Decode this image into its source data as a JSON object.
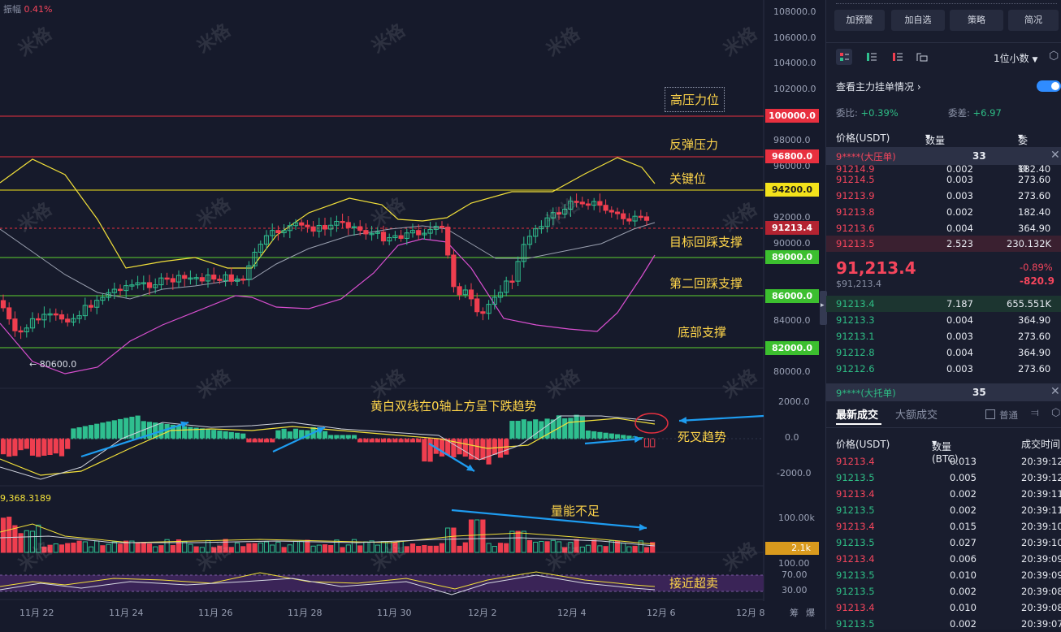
{
  "chart_header": {
    "amplitude_label": "振幅",
    "amplitude_value": "0.41%"
  },
  "price_axis": [
    "108000.0",
    "106000.0",
    "104000.0",
    "102000.0",
    "98000.0",
    "96000.0",
    "92000.0",
    "90000.0",
    "84000.0",
    "80000.0"
  ],
  "price_tags": [
    {
      "label": "100000.0",
      "kind": "red"
    },
    {
      "label": "96800.0",
      "kind": "red"
    },
    {
      "label": "94200.0",
      "kind": "yellow"
    },
    {
      "label": "91213.4",
      "kind": "darkred"
    },
    {
      "label": "89000.0",
      "kind": "green"
    },
    {
      "label": "86000.0",
      "kind": "green"
    },
    {
      "label": "82000.0",
      "kind": "green"
    }
  ],
  "annotations": {
    "high_pressure": "高压力位",
    "rebound_pressure": "反弹压力",
    "key_level": "关键位",
    "target_support": "目标回踩支撑",
    "second_support": "第二回踩支撑",
    "bottom_support": "底部支撑",
    "low_marker": "← 80600.0",
    "macd_note": "黄白双线在0轴上方呈下跌趋势",
    "death_cross": "死叉趋势",
    "volume_note": "量能不足",
    "near_oversold": "接近超卖"
  },
  "macd_axis": [
    "2000.0",
    "0.0",
    "-2000.0"
  ],
  "volume_header": "9,368.3189",
  "volume_axis": [
    "100.00k",
    "2.1k"
  ],
  "rsi_axis": [
    "100.00",
    "70.00",
    "30.00"
  ],
  "date_axis": [
    "11月 22",
    "11月 24",
    "11月 26",
    "11月 28",
    "11月 30",
    "12月 2",
    "12月 4",
    "12月 6",
    "12月 8"
  ],
  "axis_corner": [
    "筹",
    "爆"
  ],
  "watermark": "米格",
  "panel": {
    "buttons": [
      "加预警",
      "加自选",
      "策略",
      "简况"
    ],
    "precision": "1位小数",
    "main_orders_link": "查看主力挂单情况",
    "ratio_label": "委比:",
    "ratio_value": "+0.39%",
    "diff_label": "委差:",
    "diff_value": "+6.97",
    "cols": [
      "价格(USDT)",
      "数量 (BTC)",
      "委托额"
    ],
    "big_sell_label": "9****(大压单)",
    "big_sell_qty": "33",
    "asks": [
      {
        "p": "91214.9",
        "q": "0.002",
        "t": "182.40"
      },
      {
        "p": "91214.5",
        "q": "0.003",
        "t": "273.60"
      },
      {
        "p": "91213.9",
        "q": "0.003",
        "t": "273.60"
      },
      {
        "p": "91213.8",
        "q": "0.002",
        "t": "182.40"
      },
      {
        "p": "91213.6",
        "q": "0.004",
        "t": "364.90"
      },
      {
        "p": "91213.5",
        "q": "2.523",
        "t": "230.132K"
      }
    ],
    "last_price": "91,213.4",
    "last_price_usd": "$91,213.4",
    "change_pct": "-0.89%",
    "change_abs": "-820.9",
    "bids": [
      {
        "p": "91213.4",
        "q": "7.187",
        "t": "655.551K"
      },
      {
        "p": "91213.3",
        "q": "0.004",
        "t": "364.90"
      },
      {
        "p": "91213.1",
        "q": "0.003",
        "t": "273.60"
      },
      {
        "p": "91212.8",
        "q": "0.004",
        "t": "364.90"
      },
      {
        "p": "91212.6",
        "q": "0.003",
        "t": "273.60"
      }
    ],
    "big_buy_label": "9****(大托单)",
    "big_buy_qty": "35",
    "trades_tab": "最新成交",
    "big_trades_tab": "大额成交",
    "normal_label": "普通",
    "trade_cols": [
      "价格(USDT)",
      "数量(BTC)",
      "成交时间"
    ],
    "trades": [
      {
        "p": "91213.4",
        "q": "0.013",
        "t": "20:39:12",
        "side": "sell"
      },
      {
        "p": "91213.5",
        "q": "0.005",
        "t": "20:39:12",
        "side": "buy"
      },
      {
        "p": "91213.4",
        "q": "0.002",
        "t": "20:39:11",
        "side": "sell"
      },
      {
        "p": "91213.5",
        "q": "0.002",
        "t": "20:39:11",
        "side": "buy"
      },
      {
        "p": "91213.4",
        "q": "0.015",
        "t": "20:39:10",
        "side": "sell"
      },
      {
        "p": "91213.5",
        "q": "0.027",
        "t": "20:39:10",
        "side": "buy"
      },
      {
        "p": "91213.4",
        "q": "0.006",
        "t": "20:39:09",
        "side": "sell"
      },
      {
        "p": "91213.5",
        "q": "0.010",
        "t": "20:39:09",
        "side": "buy"
      },
      {
        "p": "91213.5",
        "q": "0.002",
        "t": "20:39:08",
        "side": "buy"
      },
      {
        "p": "91213.4",
        "q": "0.010",
        "t": "20:39:08",
        "side": "sell"
      },
      {
        "p": "91213.5",
        "q": "0.002",
        "t": "20:39:07",
        "side": "buy"
      }
    ]
  },
  "colors": {
    "red": "#ef3e4f",
    "green": "#2fbf8f",
    "yellow": "#f2e03a",
    "bg": "#161a2b",
    "magenta": "#d94fd0"
  }
}
